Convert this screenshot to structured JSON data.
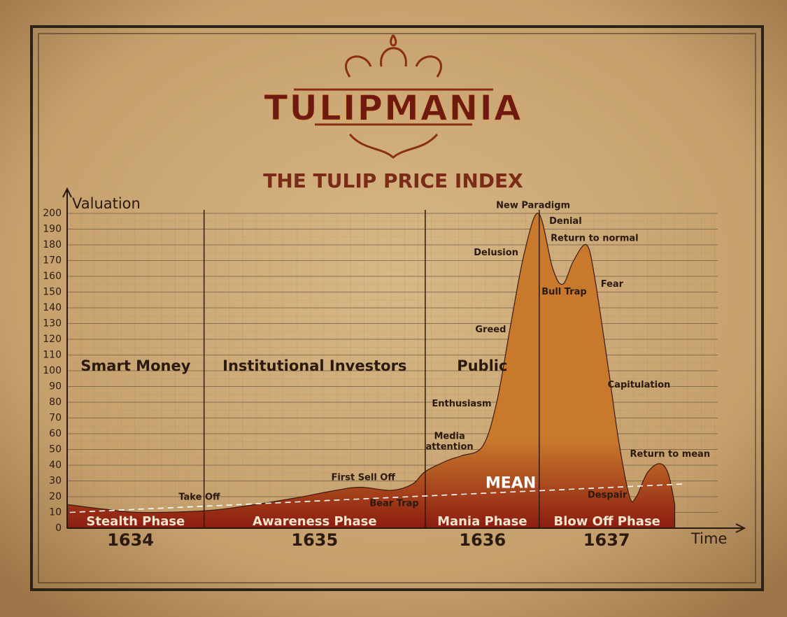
{
  "chart_data": {
    "type": "area",
    "title": "TULIPMANIA",
    "subtitle": "THE TULIP PRICE INDEX",
    "y_label": "Valuation",
    "x_label": "Time",
    "xlim": [
      0,
      100
    ],
    "ylim": [
      0,
      200
    ],
    "yticks": [
      0,
      10,
      20,
      30,
      40,
      50,
      60,
      70,
      80,
      90,
      100,
      110,
      120,
      130,
      140,
      150,
      160,
      170,
      180,
      190,
      200
    ],
    "grid": true,
    "colors": [
      "#c9792c",
      "#8c1c10"
    ],
    "x": [
      0,
      5.6,
      10.8,
      20.3,
      26.3,
      33.6,
      39.8,
      43.5,
      48.1,
      51.2,
      53.1,
      56.4,
      58.5,
      61.6,
      63.7,
      65.8,
      67.8,
      69.9,
      72.0,
      73.5,
      75.1,
      77.0,
      78.2,
      80.3,
      81.8,
      83.4,
      84.4,
      86.0,
      87.8,
      89.1,
      90.1
    ],
    "values": [
      15,
      12,
      10,
      11,
      14,
      19,
      24,
      26,
      24,
      28,
      36,
      43,
      46,
      52,
      80,
      130,
      175,
      200,
      165,
      155,
      170,
      180,
      160,
      100,
      55,
      20,
      20,
      35,
      41,
      35,
      15
    ],
    "mean": {
      "label": "MEAN",
      "x": [
        0.4,
        91.2
      ],
      "values": [
        10,
        28
      ],
      "color": "#ffffff"
    },
    "phases": [
      {
        "label": "Stealth Phase",
        "group": "Smart Money",
        "start": 0,
        "end": 20.3
      },
      {
        "label": "Awareness Phase",
        "group": "Institutional Investors",
        "start": 20.3,
        "end": 53.1
      },
      {
        "label": "Mania Phase",
        "group": "Public",
        "start": 53.1,
        "end": 70.0
      },
      {
        "label": "Blow Off Phase",
        "start": 70.0,
        "end": 90.1
      }
    ],
    "years": [
      {
        "label": "1634",
        "x": 9.4
      },
      {
        "label": "1635",
        "x": 36.7
      },
      {
        "label": "1636",
        "x": 61.6
      },
      {
        "label": "1637",
        "x": 80.0
      }
    ],
    "annotations": [
      {
        "text": "Take Off",
        "x": 19.6,
        "y": 19.6
      },
      {
        "text": "First Sell Off",
        "x": 43.9,
        "y": 32
      },
      {
        "text": "Bear Trap",
        "x": 48.5,
        "y": 15.6,
        "color": "#ffffff"
      },
      {
        "text": [
          "Media",
          "attention"
        ],
        "x": 56.7,
        "y": 55
      },
      {
        "text": "Enthusiasm",
        "x": 58.5,
        "y": 79
      },
      {
        "text": "Greed",
        "x": 62.8,
        "y": 126
      },
      {
        "text": "Delusion",
        "x": 63.6,
        "y": 175
      },
      {
        "text": "New Paradigm",
        "x": 69.1,
        "y": 205
      },
      {
        "text": "Denial",
        "x": 73.9,
        "y": 195
      },
      {
        "text": "Return to normal",
        "x": 78.2,
        "y": 184
      },
      {
        "text": "Bull Trap",
        "x": 73.7,
        "y": 150,
        "color": "#ffffff"
      },
      {
        "text": "Fear",
        "x": 80.8,
        "y": 155
      },
      {
        "text": "Capitulation",
        "x": 84.8,
        "y": 91
      },
      {
        "text": "Return to mean",
        "x": 89.4,
        "y": 47
      },
      {
        "text": "Despair",
        "x": 80.1,
        "y": 21,
        "color": "#ffffff"
      }
    ]
  }
}
